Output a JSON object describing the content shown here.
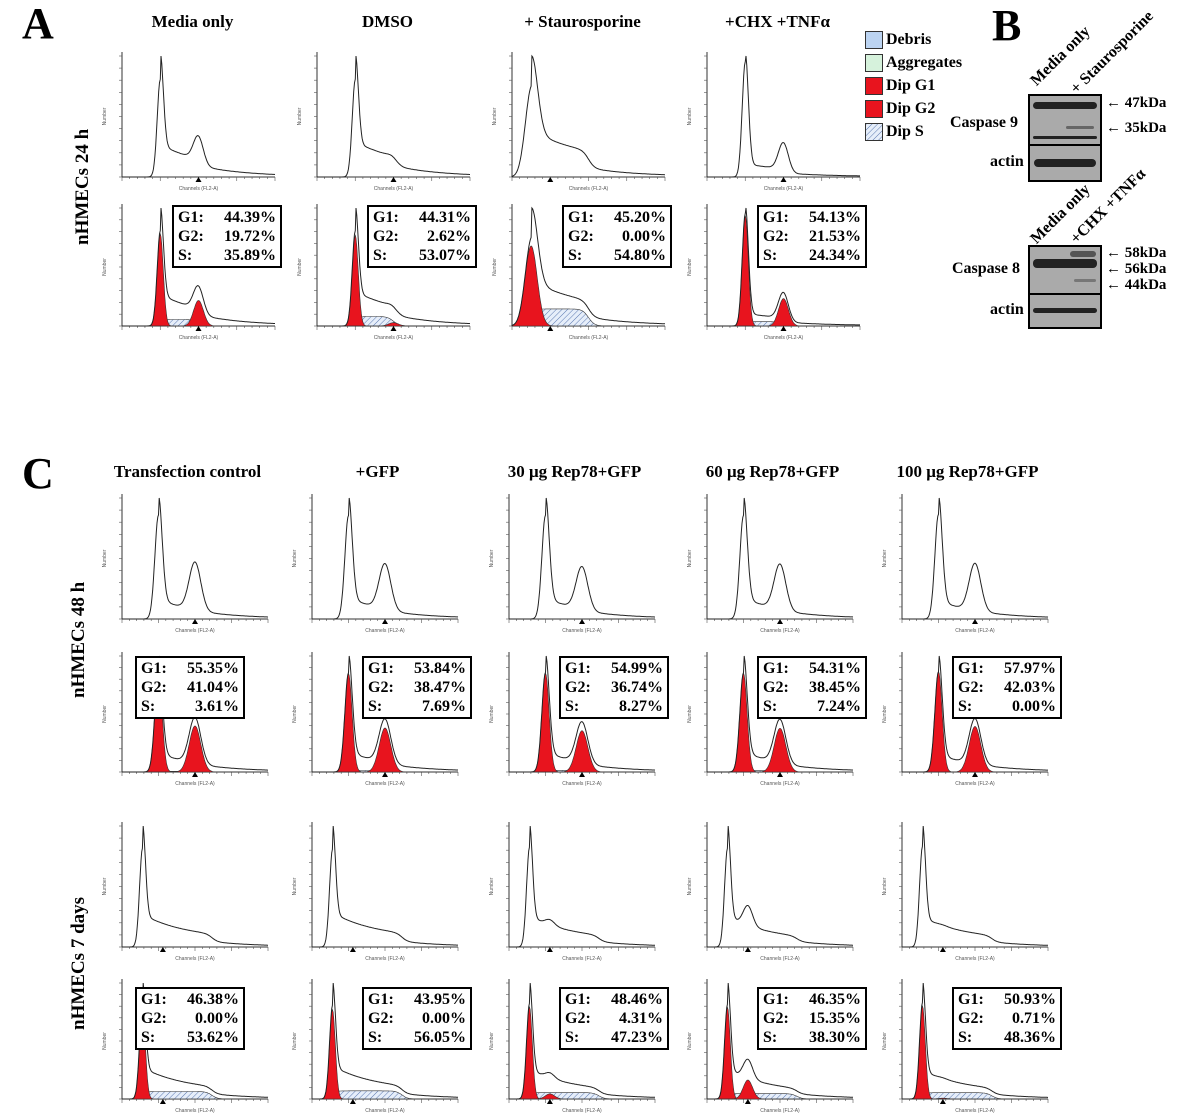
{
  "panel_a": {
    "letter": "A",
    "row_label": "nHMECs 24 h",
    "columns": [
      {
        "title": "Media only",
        "g1": "44.39%",
        "g2": "19.72%",
        "s": "35.89%"
      },
      {
        "title": "DMSO",
        "g1": "44.31%",
        "g2": "2.62%",
        "s": "53.07%"
      },
      {
        "title": "+ Staurosporine",
        "g1": "45.20%",
        "g2": "0.00%",
        "s": "54.80%"
      },
      {
        "title": "+CHX +TNFα",
        "g1": "54.13%",
        "g2": "21.53%",
        "s": "24.34%"
      }
    ]
  },
  "legend": {
    "items": [
      {
        "label": "Debris",
        "color": "#bcd4f2"
      },
      {
        "label": "Aggregates",
        "color": "#d6f2dc"
      },
      {
        "label": "Dip G1",
        "color": "#e8141e"
      },
      {
        "label": "Dip G2",
        "color": "#e8141e"
      },
      {
        "label": "Dip S",
        "color": "hatch"
      }
    ]
  },
  "stat_labels": {
    "g1": "G1:",
    "g2": "G2:",
    "s": "S:"
  },
  "axis": {
    "x_label": "Channels (FL2-A)",
    "y_label": "Number"
  },
  "panel_b": {
    "letter": "B",
    "blot1": {
      "lanes": [
        "Media only",
        "+ Staurosporine"
      ],
      "rows": [
        "Caspase 9",
        "actin"
      ],
      "markers": [
        "47kDa",
        "35kDa"
      ]
    },
    "blot2": {
      "lanes": [
        "Media only",
        "+CHX +TNFα"
      ],
      "rows": [
        "Caspase 8",
        "actin"
      ],
      "markers": [
        "58kDa",
        "56kDa",
        "44kDa"
      ]
    }
  },
  "panel_c": {
    "letter": "C",
    "columns": [
      "Transfection control",
      "+GFP",
      "30 μg Rep78+GFP",
      "60 μg Rep78+GFP",
      "100 μg Rep78+GFP"
    ],
    "rows": [
      {
        "label": "nHMECs 48 h",
        "stats": [
          {
            "g1": "55.35%",
            "g2": "41.04%",
            "s": "3.61%"
          },
          {
            "g1": "53.84%",
            "g2": "38.47%",
            "s": "7.69%"
          },
          {
            "g1": "54.99%",
            "g2": "36.74%",
            "s": "8.27%"
          },
          {
            "g1": "54.31%",
            "g2": "38.45%",
            "s": "7.24%"
          },
          {
            "g1": "57.97%",
            "g2": "42.03%",
            "s": "0.00%"
          }
        ]
      },
      {
        "label": "nHMECs 7 days",
        "stats": [
          {
            "g1": "46.38%",
            "g2": "0.00%",
            "s": "53.62%"
          },
          {
            "g1": "43.95%",
            "g2": "0.00%",
            "s": "56.05%"
          },
          {
            "g1": "48.46%",
            "g2": "4.31%",
            "s": "47.23%"
          },
          {
            "g1": "46.35%",
            "g2": "15.35%",
            "s": "38.30%"
          },
          {
            "g1": "50.93%",
            "g2": "0.71%",
            "s": "48.36%"
          }
        ]
      }
    ]
  },
  "chart_data": {
    "type": "histogram",
    "xlabel": "Channels (FL2-A)",
    "ylabel": "Number",
    "xlim": [
      0,
      200
    ],
    "series_names": [
      "Debris",
      "Aggregates",
      "Dip G1",
      "Dip G2",
      "Dip S"
    ],
    "panels": [
      {
        "group": "nHMECs 24 h",
        "condition": "Media only",
        "G1": 44.39,
        "G2": 19.72,
        "S": 35.89
      },
      {
        "group": "nHMECs 24 h",
        "condition": "DMSO",
        "G1": 44.31,
        "G2": 2.62,
        "S": 53.07
      },
      {
        "group": "nHMECs 24 h",
        "condition": "+ Staurosporine",
        "G1": 45.2,
        "G2": 0.0,
        "S": 54.8
      },
      {
        "group": "nHMECs 24 h",
        "condition": "+CHX +TNFα",
        "G1": 54.13,
        "G2": 21.53,
        "S": 24.34
      },
      {
        "group": "nHMECs 48 h",
        "condition": "Transfection control",
        "G1": 55.35,
        "G2": 41.04,
        "S": 3.61
      },
      {
        "group": "nHMECs 48 h",
        "condition": "+GFP",
        "G1": 53.84,
        "G2": 38.47,
        "S": 7.69
      },
      {
        "group": "nHMECs 48 h",
        "condition": "30 μg Rep78+GFP",
        "G1": 54.99,
        "G2": 36.74,
        "S": 8.27
      },
      {
        "group": "nHMECs 48 h",
        "condition": "60 μg Rep78+GFP",
        "G1": 54.31,
        "G2": 38.45,
        "S": 7.24
      },
      {
        "group": "nHMECs 48 h",
        "condition": "100 μg Rep78+GFP",
        "G1": 57.97,
        "G2": 42.03,
        "S": 0.0
      },
      {
        "group": "nHMECs 7 days",
        "condition": "Transfection control",
        "G1": 46.38,
        "G2": 0.0,
        "S": 53.62
      },
      {
        "group": "nHMECs 7 days",
        "condition": "+GFP",
        "G1": 43.95,
        "G2": 0.0,
        "S": 56.05
      },
      {
        "group": "nHMECs 7 days",
        "condition": "30 μg Rep78+GFP",
        "G1": 48.46,
        "G2": 4.31,
        "S": 47.23
      },
      {
        "group": "nHMECs 7 days",
        "condition": "60 μg Rep78+GFP",
        "G1": 46.35,
        "G2": 15.35,
        "S": 38.3
      },
      {
        "group": "nHMECs 7 days",
        "condition": "100 μg Rep78+GFP",
        "G1": 50.93,
        "G2": 0.71,
        "S": 48.36
      }
    ]
  }
}
